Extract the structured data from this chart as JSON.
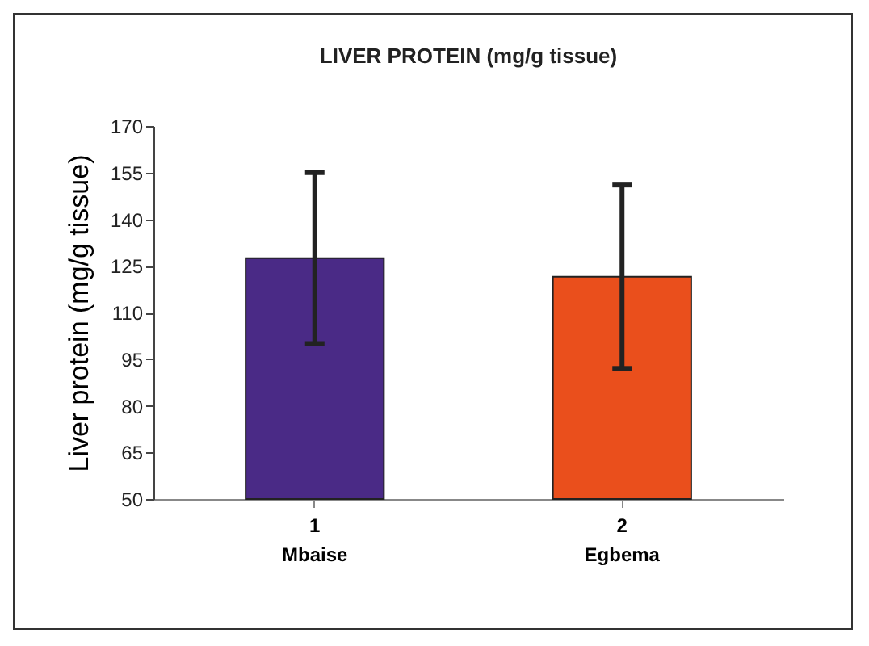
{
  "chart_data": {
    "type": "bar",
    "title": "LIVER PROTEIN (mg/g tissue)",
    "ylabel": "Liver protein (mg/g tissue)",
    "categories": [
      "1\nMbaise",
      "2\nEgbema"
    ],
    "values": [
      127.5,
      121.5
    ],
    "errors": [
      27.5,
      29.5
    ],
    "colors": [
      "#4a2a86",
      "#ea4f1c"
    ],
    "ylim": [
      50,
      170
    ],
    "yticks": [
      50,
      65,
      80,
      95,
      110,
      125,
      140,
      155,
      170
    ],
    "grid": false
  }
}
